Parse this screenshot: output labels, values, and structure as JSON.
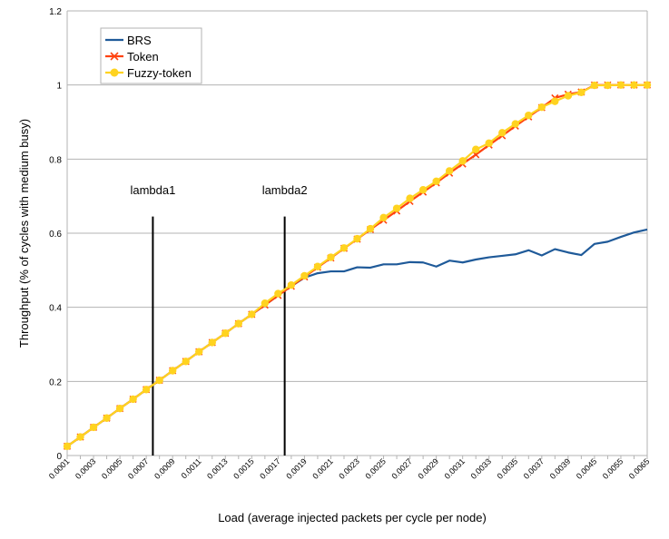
{
  "chart_data": {
    "type": "line",
    "title": "",
    "xlabel": "Load (average injected packets per cycle per node)",
    "ylabel": "Throughput (% of cycles with medium busy)",
    "ylim": [
      0,
      1.2
    ],
    "yticks": [
      "0",
      "0.2",
      "0.4",
      "0.6",
      "0.8",
      "1",
      "1.2"
    ],
    "grid": "horizontal",
    "legend_position": "top-left",
    "x": [
      "0.0001",
      "0.0002",
      "0.0003",
      "0.0004",
      "0.0005",
      "0.0006",
      "0.0007",
      "0.0008",
      "0.0009",
      "0.001",
      "0.0011",
      "0.0012",
      "0.0013",
      "0.0014",
      "0.0015",
      "0.0016",
      "0.0017",
      "0.0018",
      "0.0019",
      "0.002",
      "0.0021",
      "0.0022",
      "0.0023",
      "0.0024",
      "0.0025",
      "0.0026",
      "0.0027",
      "0.0028",
      "0.0029",
      "0.003",
      "0.0031",
      "0.0032",
      "0.0033",
      "0.0034",
      "0.0035",
      "0.0036",
      "0.0037",
      "0.0038",
      "0.0039",
      "0.004",
      "0.0045",
      "0.005",
      "0.0055",
      "0.006",
      "0.0065"
    ],
    "xtick_labels": [
      "0.0001",
      "0.0003",
      "0.0005",
      "0.0007",
      "0.0009",
      "0.0011",
      "0.0013",
      "0.0015",
      "0.0017",
      "0.0019",
      "0.0021",
      "0.0023",
      "0.0025",
      "0.0027",
      "0.0029",
      "0.0031",
      "0.0033",
      "0.0035",
      "0.0037",
      "0.0039",
      "0.0045",
      "0.0055",
      "0.0065"
    ],
    "series": [
      {
        "name": "BRS",
        "color": "#1f5a99",
        "marker": "none",
        "values": [
          0.025,
          0.05,
          0.076,
          0.101,
          0.127,
          0.152,
          0.178,
          0.203,
          0.229,
          0.254,
          0.28,
          0.305,
          0.33,
          0.356,
          0.381,
          0.406,
          0.432,
          0.457,
          0.48,
          0.492,
          0.497,
          0.497,
          0.508,
          0.507,
          0.516,
          0.516,
          0.522,
          0.521,
          0.51,
          0.526,
          0.521,
          0.529,
          0.535,
          0.539,
          0.543,
          0.554,
          0.54,
          0.557,
          0.548,
          0.541,
          0.571,
          0.577,
          0.59,
          0.602,
          0.61
        ]
      },
      {
        "name": "Token",
        "color": "#ff420e",
        "marker": "x",
        "values": [
          0.025,
          0.05,
          0.076,
          0.101,
          0.127,
          0.152,
          0.178,
          0.203,
          0.229,
          0.254,
          0.28,
          0.305,
          0.33,
          0.356,
          0.381,
          0.406,
          0.432,
          0.457,
          0.482,
          0.508,
          0.533,
          0.559,
          0.584,
          0.61,
          0.635,
          0.66,
          0.686,
          0.711,
          0.736,
          0.762,
          0.787,
          0.812,
          0.838,
          0.863,
          0.889,
          0.914,
          0.939,
          0.965,
          0.975,
          0.981,
          1.0,
          1.0,
          1.0,
          1.0,
          1.0
        ]
      },
      {
        "name": "Fuzzy-token",
        "color": "#ffd320",
        "marker": "circle",
        "values": [
          0.025,
          0.05,
          0.076,
          0.101,
          0.127,
          0.152,
          0.178,
          0.203,
          0.229,
          0.254,
          0.28,
          0.305,
          0.33,
          0.356,
          0.381,
          0.411,
          0.437,
          0.46,
          0.485,
          0.51,
          0.535,
          0.56,
          0.585,
          0.612,
          0.642,
          0.667,
          0.694,
          0.717,
          0.74,
          0.768,
          0.795,
          0.826,
          0.843,
          0.871,
          0.895,
          0.918,
          0.94,
          0.956,
          0.971,
          0.98,
          0.999,
          0.999,
          1.0,
          1.0,
          1.0
        ]
      }
    ],
    "annotations": [
      {
        "label": "lambda1",
        "x_index": 6.5
      },
      {
        "label": "lambda2",
        "x_index": 16.5
      }
    ]
  }
}
